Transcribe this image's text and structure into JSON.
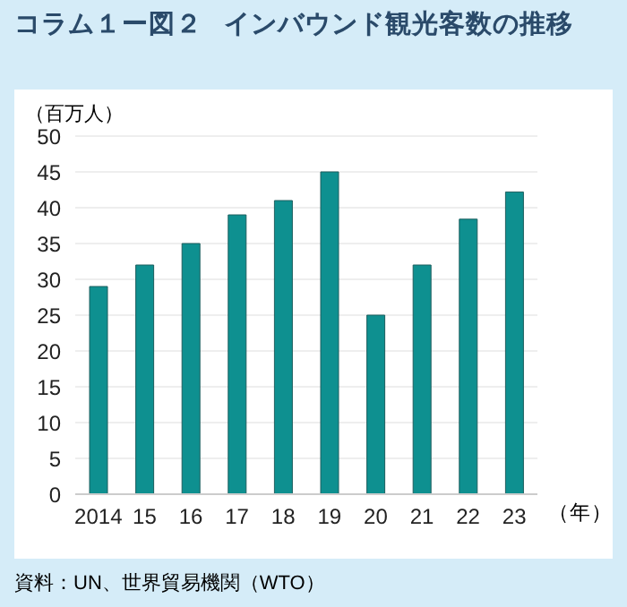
{
  "chart_data": {
    "type": "bar",
    "title": "コラム１ー図２　インバウンド観光客数の推移",
    "ylabel": "（百万人）",
    "xlabel": "（年）",
    "categories": [
      "2014",
      "15",
      "16",
      "17",
      "18",
      "19",
      "20",
      "21",
      "22",
      "23"
    ],
    "values": [
      29,
      32,
      35,
      39,
      41,
      45,
      25,
      32,
      38.4,
      42.2
    ],
    "color": "#0e9090",
    "ylim": [
      0,
      50
    ],
    "yticks": [
      0,
      5,
      10,
      15,
      20,
      25,
      30,
      35,
      40,
      45,
      50
    ],
    "grid": "y",
    "annotations": [
      "資料：UN、世界貿易機関（WTO）"
    ]
  }
}
